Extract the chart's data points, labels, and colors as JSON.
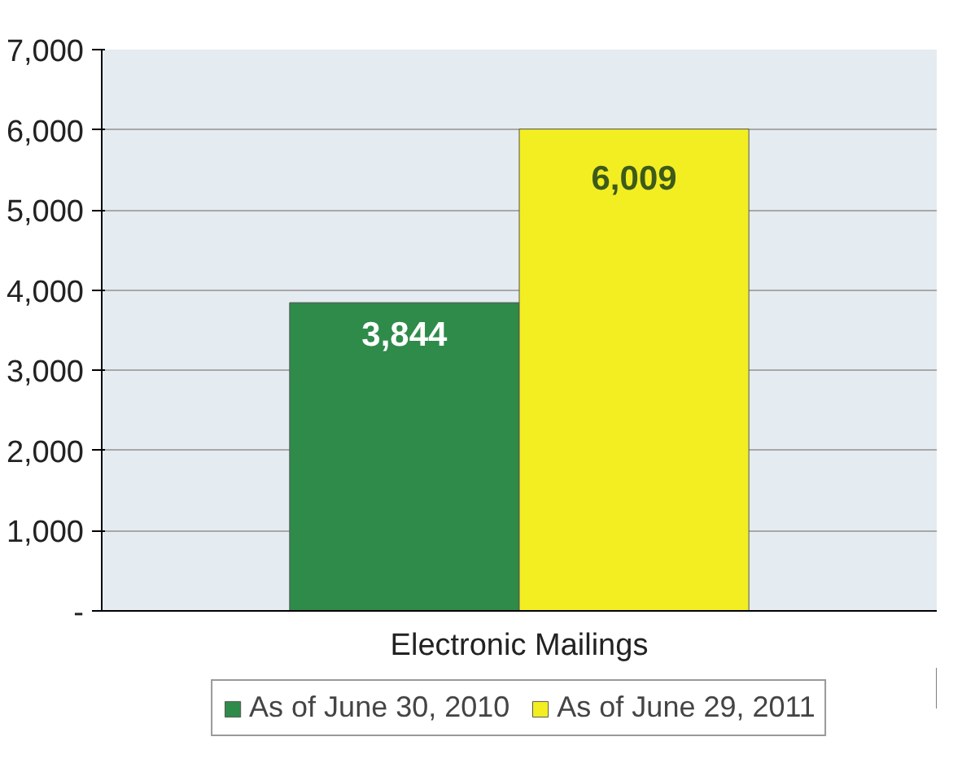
{
  "chart_data": {
    "type": "bar",
    "categories": [
      "Electronic Mailings"
    ],
    "series": [
      {
        "name": "As of June 30, 2010",
        "color": "#2e8b4a",
        "values": [
          3844
        ],
        "value_labels": [
          "3,844"
        ]
      },
      {
        "name": "As of June 29, 2011",
        "color": "#f2ee22",
        "values": [
          6009
        ],
        "value_labels": [
          "6,009"
        ]
      }
    ],
    "ylim": [
      0,
      7000
    ],
    "yticks": [
      {
        "value": 0,
        "label": "-"
      },
      {
        "value": 1000,
        "label": "1,000"
      },
      {
        "value": 2000,
        "label": "2,000"
      },
      {
        "value": 3000,
        "label": "3,000"
      },
      {
        "value": 4000,
        "label": "4,000"
      },
      {
        "value": 5000,
        "label": "5,000"
      },
      {
        "value": 6000,
        "label": "6,000"
      },
      {
        "value": 7000,
        "label": "7,000"
      }
    ],
    "grid": "y",
    "legend": "bottom"
  }
}
